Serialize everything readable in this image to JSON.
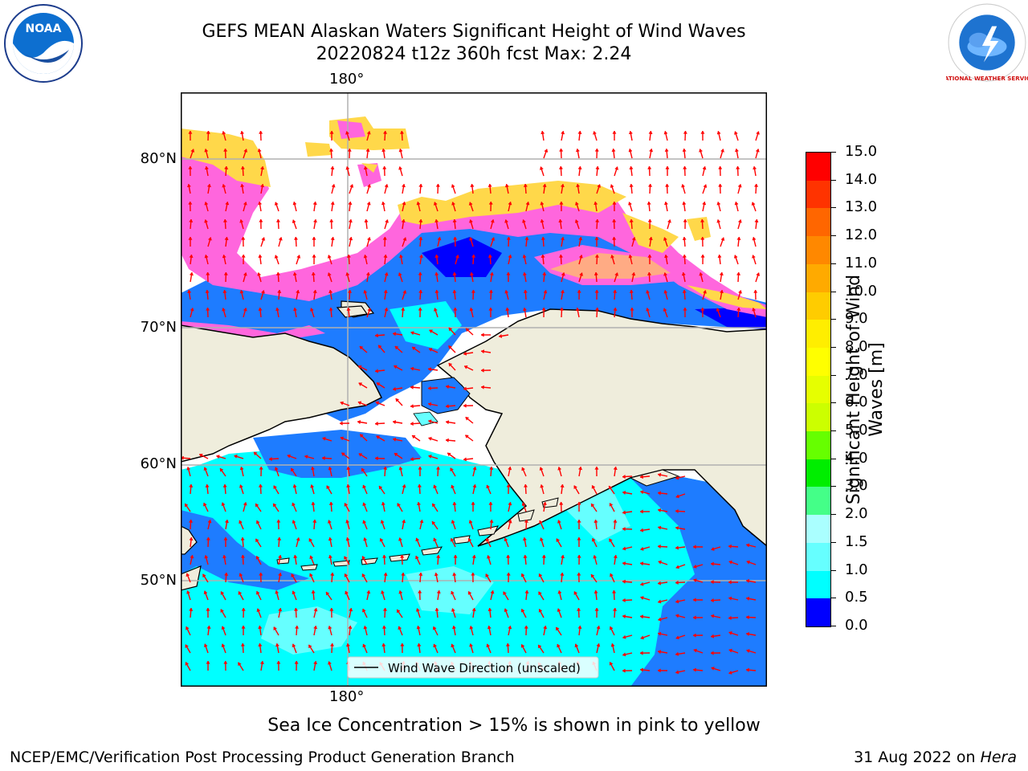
{
  "header": {
    "title_line1": "GEFS MEAN Alaskan Waters Significant Height of Wind Waves",
    "title_line2": "20220824 t12z 360h fcst   Max: 2.24"
  },
  "logos": {
    "left": "NOAA",
    "right": "NATIONAL WEATHER SERVICE"
  },
  "map": {
    "lon_label_top": "180°",
    "lon_label_bottom": "180°",
    "lat_labels": [
      "80°N",
      "70°N",
      "60°N",
      "50°N"
    ],
    "legend_label": "Wind Wave Direction (unscaled)",
    "colors": {
      "land": "#efeddc",
      "ocean_low": "#0000ff",
      "ocean_mid": "#1e7cff",
      "ocean_high": "#00ffff",
      "ocean_light": "#66ffff",
      "ice_pink": "#ff66dd",
      "ice_yellow": "#ffd84a",
      "arrow": "#ff0000"
    }
  },
  "colorbar": {
    "title": "Significant Height of Wind Waves [m]",
    "ticks": [
      "15.0",
      "14.0",
      "13.0",
      "12.0",
      "11.0",
      "10.0",
      "9.0",
      "8.0",
      "7.0",
      "6.0",
      "5.0",
      "4.0",
      "3.0",
      "2.0",
      "1.5",
      "1.0",
      "0.5",
      "0.0"
    ],
    "colors": [
      "#ff0000",
      "#ff3300",
      "#ff6600",
      "#ff8800",
      "#ffaa00",
      "#ffcc00",
      "#ffee00",
      "#ffff00",
      "#e6ff00",
      "#ccff00",
      "#66ff00",
      "#00ee00",
      "#44ff88",
      "#aaffff",
      "#66ffff",
      "#00ffff",
      "#1e7cff",
      "#0000ff"
    ]
  },
  "caption": "Sea Ice Concentration > 15% is shown in pink to yellow",
  "footer": {
    "left": "NCEP/EMC/Verification Post Processing Product Generation Branch",
    "right_date": "31 Aug 2022 on",
    "right_host": "Hera"
  }
}
